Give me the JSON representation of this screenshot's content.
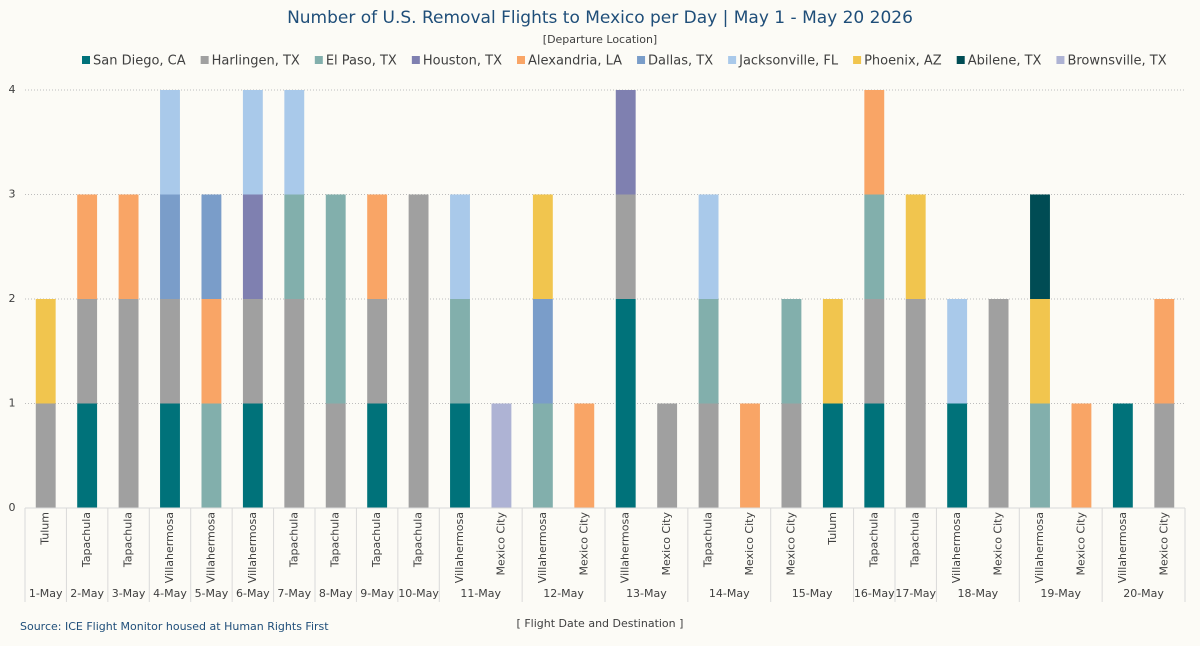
{
  "chart_data": {
    "type": "stacked_bar",
    "title": "Number of U.S. Removal Flights to Mexico per Day | May 1 - May 20 2026",
    "subtitle": "[Departure Location]",
    "x_label": "[ Flight Date and Destination ]",
    "source": "Source: ICE Flight Monitor housed at Human Rights First",
    "category_groups": [
      {
        "label": "1-May",
        "categories": [
          "Tulum"
        ]
      },
      {
        "label": "2-May",
        "categories": [
          "Tapachula"
        ]
      },
      {
        "label": "3-May",
        "categories": [
          "Tapachula"
        ]
      },
      {
        "label": "4-May",
        "categories": [
          "Villahermosa"
        ]
      },
      {
        "label": "5-May",
        "categories": [
          "Villahermosa"
        ]
      },
      {
        "label": "6-May",
        "categories": [
          "Villahermosa"
        ]
      },
      {
        "label": "7-May",
        "categories": [
          "Tapachula"
        ]
      },
      {
        "label": "8-May",
        "categories": [
          "Tapachula"
        ]
      },
      {
        "label": "9-May",
        "categories": [
          "Tapachula"
        ]
      },
      {
        "label": "10-May",
        "categories": [
          "Tapachula"
        ]
      },
      {
        "label": "11-May",
        "categories": [
          "Villahermosa",
          "Mexico City"
        ]
      },
      {
        "label": "12-May",
        "categories": [
          "Villahermosa",
          "Mexico City"
        ]
      },
      {
        "label": "13-May",
        "categories": [
          "Villahermosa",
          "Mexico City"
        ]
      },
      {
        "label": "14-May",
        "categories": [
          "Tapachula",
          "Mexico City"
        ]
      },
      {
        "label": "15-May",
        "categories": [
          "Mexico City",
          "Tulum"
        ]
      },
      {
        "label": "16-May",
        "categories": [
          "Tapachula"
        ]
      },
      {
        "label": "17-May",
        "categories": [
          "Tapachula"
        ]
      },
      {
        "label": "18-May",
        "categories": [
          "Villahermosa",
          "Mexico City"
        ]
      },
      {
        "label": "19-May",
        "categories": [
          "Villahermosa",
          "Mexico City"
        ]
      },
      {
        "label": "20-May",
        "categories": [
          "Villahermosa",
          "Mexico City"
        ]
      }
    ],
    "series": [
      {
        "name": "San Diego, CA",
        "color": "#00727a",
        "values": [
          0,
          1,
          0,
          1,
          0,
          1,
          0,
          0,
          1,
          0,
          1,
          0,
          0,
          0,
          2,
          0,
          0,
          0,
          0,
          1,
          1,
          0,
          1,
          0,
          0,
          0,
          1,
          0
        ]
      },
      {
        "name": "Harlingen, TX",
        "color": "#a0a0a0",
        "values": [
          1,
          1,
          2,
          1,
          0,
          1,
          2,
          1,
          1,
          3,
          0,
          0,
          0,
          0,
          1,
          1,
          1,
          0,
          1,
          0,
          1,
          2,
          0,
          2,
          0,
          0,
          0,
          1
        ]
      },
      {
        "name": "El Paso, TX",
        "color": "#82afac",
        "values": [
          0,
          0,
          0,
          0,
          1,
          0,
          1,
          2,
          0,
          0,
          1,
          0,
          1,
          0,
          0,
          0,
          1,
          0,
          1,
          0,
          1,
          0,
          0,
          0,
          1,
          0,
          0,
          0
        ]
      },
      {
        "name": "Houston, TX",
        "color": "#7f80b0",
        "values": [
          0,
          0,
          0,
          0,
          0,
          1,
          0,
          0,
          0,
          0,
          0,
          0,
          0,
          0,
          1,
          0,
          0,
          0,
          0,
          0,
          0,
          0,
          0,
          0,
          0,
          0,
          0,
          0
        ]
      },
      {
        "name": "Alexandria, LA",
        "color": "#f9a566",
        "values": [
          0,
          1,
          1,
          0,
          1,
          0,
          0,
          0,
          1,
          0,
          0,
          0,
          0,
          1,
          0,
          0,
          0,
          1,
          0,
          0,
          1,
          0,
          0,
          0,
          0,
          1,
          0,
          1
        ]
      },
      {
        "name": "Dallas, TX",
        "color": "#7a9dc9",
        "values": [
          0,
          0,
          0,
          1,
          1,
          0,
          0,
          0,
          0,
          0,
          0,
          0,
          1,
          0,
          0,
          0,
          0,
          0,
          0,
          0,
          0,
          0,
          0,
          0,
          0,
          0,
          0,
          0
        ]
      },
      {
        "name": "Jacksonville, FL",
        "color": "#a9c9ea",
        "values": [
          0,
          0,
          0,
          1,
          0,
          1,
          1,
          0,
          0,
          0,
          1,
          0,
          0,
          0,
          0,
          0,
          1,
          0,
          0,
          0,
          0,
          0,
          1,
          0,
          0,
          0,
          0,
          0
        ]
      },
      {
        "name": "Phoenix, AZ",
        "color": "#f1c54e",
        "values": [
          1,
          0,
          0,
          0,
          0,
          0,
          0,
          0,
          0,
          0,
          0,
          0,
          1,
          0,
          0,
          0,
          0,
          0,
          0,
          1,
          0,
          1,
          0,
          0,
          1,
          0,
          0,
          0
        ]
      },
      {
        "name": "Abilene, TX",
        "color": "#004c54",
        "values": [
          0,
          0,
          0,
          0,
          0,
          0,
          0,
          0,
          0,
          0,
          0,
          0,
          0,
          0,
          0,
          0,
          0,
          0,
          0,
          0,
          0,
          0,
          0,
          0,
          1,
          0,
          0,
          0
        ]
      },
      {
        "name": "Brownsville, TX",
        "color": "#aeb3d4",
        "values": [
          0,
          0,
          0,
          0,
          0,
          0,
          0,
          0,
          0,
          0,
          0,
          1,
          0,
          0,
          0,
          0,
          0,
          0,
          0,
          0,
          0,
          0,
          0,
          0,
          0,
          0,
          0,
          0
        ]
      }
    ],
    "ylim": [
      0,
      4
    ],
    "yticks": [
      0,
      1,
      2,
      3,
      4
    ],
    "grid": true
  }
}
